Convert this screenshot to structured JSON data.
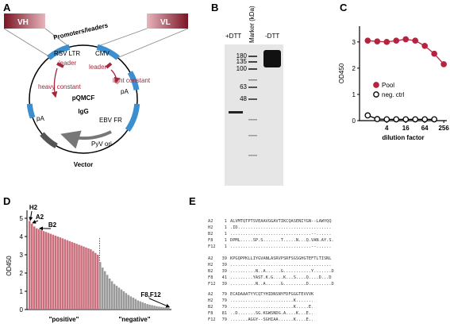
{
  "panel_labels": [
    "A",
    "B",
    "C",
    "D",
    "E"
  ],
  "vector_map": {
    "heavy_box": "VH",
    "light_box": "VL",
    "promoters": "Promoters/leaders",
    "rsv": "RSV LTR",
    "cmv": "CMV",
    "leader_h": "leader",
    "leader_l": "leader",
    "heavy": "heavy constant",
    "light": "light constant",
    "name": "pQMCF",
    "product": "IgG",
    "pa_left": "pA",
    "pa_right": "pA",
    "ebv": "EBV FR",
    "pyv": "PyV ori",
    "caption": "Vector"
  },
  "gel": {
    "reduced": "+DTT",
    "marker": "Marker (kDa)",
    "nonreduced": "-DTT",
    "marker_sizes": [
      "180",
      "135",
      "100",
      "63",
      "48"
    ]
  },
  "chart_data": [
    {
      "type": "line",
      "x": [
        1,
        2,
        4,
        8,
        16,
        32,
        64,
        128,
        256
      ],
      "xscale": "log",
      "xlim": [
        0.55,
        320
      ],
      "xticks": [
        4,
        16,
        64,
        256
      ],
      "ylim": [
        0,
        3.6
      ],
      "yticks": [
        0,
        1,
        2,
        3
      ],
      "xlabel": "dilution factor",
      "ylabel": "OD450",
      "legend": "lower right",
      "series": [
        {
          "name": "Pool",
          "color": "#b5243e",
          "marker": "filled",
          "values": [
            3.05,
            3.02,
            3.0,
            3.05,
            3.1,
            3.05,
            2.85,
            2.55,
            2.15
          ]
        },
        {
          "name": "neg. ctrl",
          "color": "#000000",
          "marker": "open",
          "values": [
            0.2,
            0.06,
            0.05,
            0.05,
            0.05,
            0.05,
            0.05,
            0.05,
            null
          ]
        }
      ]
    },
    {
      "type": "bar",
      "ylabel": "OD450",
      "ylim": [
        0,
        5
      ],
      "yticks": [
        0,
        1,
        2,
        3,
        4,
        5
      ],
      "groups": [
        {
          "label": "\"positive\"",
          "color": "#c9707c",
          "values": [
            4.85,
            4.7,
            4.55,
            4.45,
            4.4,
            4.35,
            4.3,
            4.25,
            4.2,
            4.15,
            4.1,
            4.05,
            4.0,
            3.95,
            3.9,
            3.85,
            3.8,
            3.75,
            3.7,
            3.65,
            3.6,
            3.55,
            3.5,
            3.45,
            3.4,
            3.35,
            3.3,
            3.2,
            3.1,
            3.0
          ]
        },
        {
          "label": "\"negative\"",
          "color": "#9a9a9a",
          "values": [
            2.6,
            2.3,
            2.1,
            1.9,
            1.7,
            1.55,
            1.4,
            1.3,
            1.2,
            1.1,
            1.0,
            0.9,
            0.8,
            0.72,
            0.65,
            0.58,
            0.5,
            0.45,
            0.4,
            0.35,
            0.3,
            0.27,
            0.24,
            0.21,
            0.18,
            0.16,
            0.14,
            0.12,
            0.11,
            0.1
          ]
        }
      ],
      "annotations": [
        "H2",
        "A2",
        "B2",
        "F8,F12"
      ]
    }
  ],
  "alignment": {
    "blocks": [
      [
        {
          "name": "A2",
          "start": 1,
          "sequence": "ALVMTQTPTSVEAAVGGAVTIKCQASENIYGN--LAWYQQ"
        },
        {
          "name": "H2",
          "start": 1,
          "sequence": ".ID....................................."
        },
        {
          "name": "B2",
          "start": 1,
          "sequence": "................................--......"
        },
        {
          "name": "F8",
          "start": 1,
          "sequence": "DPML.....SP.S.......T.....N...Q.VAN.AY.S."
        },
        {
          "name": "F12",
          "start": 1,
          "sequence": "................................--......"
        }
      ],
      [
        {
          "name": "A2",
          "start": 39,
          "sequence": "KPGQPPKLLIYGVANLASRVPSRFSGSGHGTEFTLTISNL"
        },
        {
          "name": "H2",
          "start": 39,
          "sequence": "........................................"
        },
        {
          "name": "B2",
          "start": 39,
          "sequence": "..........N..A......G...........Y.......D"
        },
        {
          "name": "F8",
          "start": 41,
          "sequence": ".........YAST.K.G....K...S....Q....D...D"
        },
        {
          "name": "F12",
          "start": 39,
          "sequence": "..........N..A......G.........D.........D"
        }
      ],
      [
        {
          "name": "A2",
          "start": 79,
          "sequence": "ECADAAATYYCQTYHIDNSNYFDFGGGTEVVVK"
        },
        {
          "name": "H2",
          "start": 79,
          "sequence": ".........................K......."
        },
        {
          "name": "B2",
          "start": 79,
          "sequence": ".........................K.....E."
        },
        {
          "name": "F8",
          "start": 81,
          "sequence": "..D.......SG.KGWSNDG.A....K...E.."
        },
        {
          "name": "F12",
          "start": 79,
          "sequence": ".......AGGY--SGHIAA......K....E.."
        }
      ]
    ]
  }
}
